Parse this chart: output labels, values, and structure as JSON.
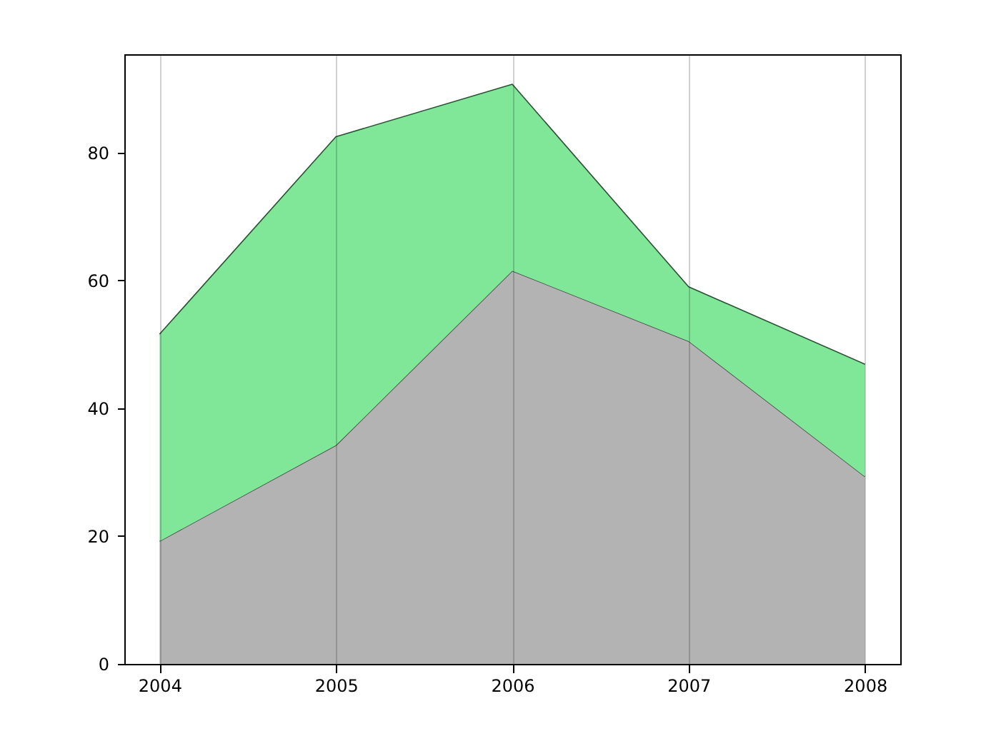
{
  "chart_data": {
    "type": "area",
    "stacked": true,
    "x": [
      2004,
      2005,
      2006,
      2007,
      2008
    ],
    "series": [
      {
        "color": "#b3b3b3",
        "values": [
          19.2,
          34.2,
          61.5,
          50.5,
          29.3
        ]
      },
      {
        "color": "#80e698",
        "values": [
          32.4,
          48.3,
          29.2,
          8.5,
          17.6
        ]
      }
    ],
    "xlim": [
      2003.8,
      2008.2
    ],
    "xticks": [
      2004,
      2005,
      2006,
      2007,
      2008
    ],
    "ylim": [
      0,
      95.4
    ],
    "yticks": [
      0,
      20,
      40,
      60,
      80
    ],
    "grid": "x"
  }
}
